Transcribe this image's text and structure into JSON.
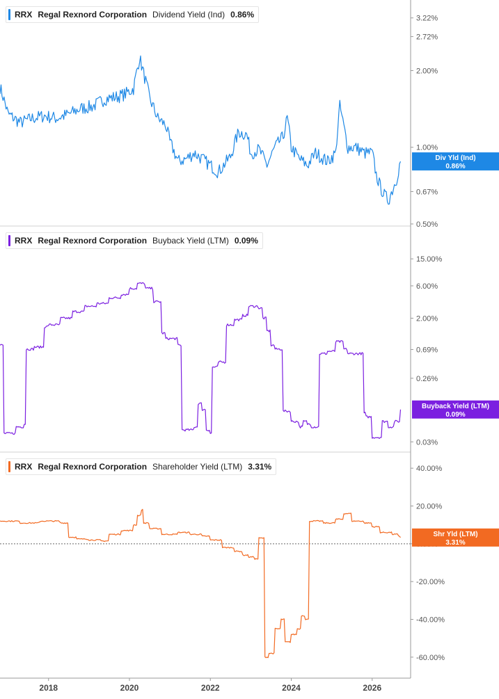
{
  "chart_data": [
    {
      "type": "line",
      "ticker": "RRX",
      "company": "Regal Rexnord Corporation",
      "metric": "Dividend Yield (Ind)",
      "last_value": "0.86%",
      "badge": {
        "label": "Div Yld (Ind)",
        "value": "0.86%"
      },
      "color": "#1e88e5",
      "scale": "log",
      "ylim": [
        0.5,
        3.6
      ],
      "yticks": [
        "0.50%",
        "0.67%",
        "1.00%",
        "2.00%",
        "2.72%",
        "3.22%"
      ],
      "ytick_values": [
        0.5,
        0.67,
        1.0,
        2.0,
        2.72,
        3.22
      ],
      "series": [
        {
          "x": [
            2016.8,
            2017.0,
            2017.3,
            2017.6,
            2017.9,
            2018.2,
            2018.5,
            2018.8,
            2019.1,
            2019.4,
            2019.7,
            2019.9,
            2020.1,
            2020.2,
            2020.25,
            2020.35,
            2020.5,
            2020.7,
            2020.9,
            2021.0,
            2021.2,
            2021.4,
            2021.6,
            2021.8,
            2022.0,
            2022.2,
            2022.5,
            2022.7,
            2022.9,
            2023.0,
            2023.2,
            2023.4,
            2023.6,
            2023.8,
            2023.9,
            2024.0,
            2024.2,
            2024.4,
            2024.6,
            2024.9,
            2025.1,
            2025.2,
            2025.3,
            2025.4,
            2025.6,
            2025.8,
            2026.0,
            2026.1,
            2026.2,
            2026.3,
            2026.4,
            2026.5,
            2026.6,
            2026.7
          ],
          "y": [
            1.72,
            1.35,
            1.25,
            1.3,
            1.33,
            1.3,
            1.35,
            1.42,
            1.45,
            1.55,
            1.58,
            1.62,
            1.7,
            2.05,
            2.25,
            1.95,
            1.55,
            1.3,
            1.22,
            1.05,
            0.88,
            0.9,
            0.95,
            0.9,
            0.85,
            0.8,
            0.92,
            1.15,
            1.12,
            0.95,
            0.98,
            0.85,
            1.0,
            1.1,
            1.3,
            1.0,
            0.9,
            0.85,
            0.95,
            0.88,
            0.95,
            1.45,
            1.2,
            1.0,
            1.0,
            0.95,
            0.95,
            0.78,
            0.7,
            0.65,
            0.62,
            0.68,
            0.75,
            0.88
          ]
        }
      ]
    },
    {
      "type": "line",
      "ticker": "RRX",
      "company": "Regal Rexnord Corporation",
      "metric": "Buyback Yield (LTM)",
      "last_value": "0.09%",
      "badge": {
        "label": "Buyback Yield (LTM)",
        "value": "0.09%"
      },
      "color": "#7b1fe0",
      "scale": "log",
      "ylim": [
        0.025,
        20
      ],
      "yticks": [
        "0.03%",
        "0.26%",
        "0.69%",
        "2.00%",
        "6.00%",
        "15.00%"
      ],
      "ytick_values": [
        0.03,
        0.26,
        0.69,
        2.0,
        6.0,
        15.0
      ],
      "series": [
        {
          "x": [
            2016.8,
            2016.85,
            2016.9,
            2017.1,
            2017.2,
            2017.4,
            2017.45,
            2017.65,
            2017.9,
            2018.0,
            2018.3,
            2018.6,
            2018.9,
            2019.2,
            2019.5,
            2019.8,
            2020.0,
            2020.2,
            2020.4,
            2020.6,
            2020.8,
            2020.9,
            2021.0,
            2021.2,
            2021.3,
            2021.6,
            2021.7,
            2021.8,
            2021.9,
            2022.0,
            2022.05,
            2022.2,
            2022.4,
            2022.6,
            2022.8,
            2022.95,
            2023.2,
            2023.3,
            2023.4,
            2023.5,
            2023.6,
            2023.8,
            2024.0,
            2024.2,
            2024.3,
            2024.4,
            2024.5,
            2024.7,
            2024.9,
            2025.1,
            2025.3,
            2025.4,
            2025.6,
            2025.7,
            2025.8,
            2025.85,
            2026.0,
            2026.15,
            2026.25,
            2026.4,
            2026.55,
            2026.7
          ],
          "y": [
            0.8,
            0.8,
            0.04,
            0.04,
            0.05,
            0.055,
            0.7,
            0.75,
            1.5,
            1.6,
            2.0,
            2.5,
            3.0,
            3.3,
            4.0,
            4.5,
            5.5,
            6.5,
            5.5,
            3.5,
            1.2,
            1.0,
            1.0,
            0.8,
            0.045,
            0.05,
            0.11,
            0.09,
            0.045,
            0.04,
            0.38,
            0.45,
            1.6,
            1.9,
            2.2,
            3.0,
            2.8,
            2.0,
            1.3,
            0.8,
            0.7,
            0.085,
            0.06,
            0.05,
            0.06,
            0.055,
            0.05,
            0.6,
            0.65,
            0.9,
            0.7,
            0.6,
            0.6,
            0.6,
            0.08,
            0.07,
            0.035,
            0.035,
            0.06,
            0.05,
            0.06,
            0.09
          ]
        }
      ]
    },
    {
      "type": "line",
      "ticker": "RRX",
      "company": "Regal Rexnord Corporation",
      "metric": "Shareholder Yield (LTM)",
      "last_value": "3.31%",
      "badge": {
        "label": "Shr Yld (LTM)",
        "value": "3.31%"
      },
      "color": "#f26a22",
      "scale": "linear",
      "ylim": [
        -70,
        43
      ],
      "yticks": [
        "-60.00%",
        "-40.00%",
        "-20.00%",
        "0.00%",
        "20.00%",
        "40.00%"
      ],
      "ytick_values": [
        -60,
        -40,
        -20,
        0,
        20,
        40
      ],
      "zero_line": true,
      "series": [
        {
          "x": [
            2016.8,
            2017.3,
            2017.8,
            2018.3,
            2018.5,
            2018.7,
            2019.0,
            2019.3,
            2019.5,
            2019.8,
            2020.1,
            2020.2,
            2020.3,
            2020.35,
            2020.5,
            2020.8,
            2021.2,
            2021.5,
            2021.8,
            2022.0,
            2022.3,
            2022.6,
            2022.8,
            2022.95,
            2023.1,
            2023.2,
            2023.3,
            2023.35,
            2023.45,
            2023.6,
            2023.75,
            2023.85,
            2024.0,
            2024.15,
            2024.25,
            2024.35,
            2024.45,
            2024.8,
            2025.1,
            2025.3,
            2025.5,
            2025.8,
            2026.0,
            2026.2,
            2026.5,
            2026.65,
            2026.7
          ],
          "y": [
            12,
            11,
            12,
            11,
            3.5,
            2.5,
            2,
            1.5,
            5,
            7,
            10,
            15,
            18,
            11,
            8,
            5,
            6,
            5,
            4,
            2,
            -2,
            -4,
            -6,
            -7,
            -8,
            3,
            3,
            -60,
            -58,
            -45,
            -40,
            -52,
            -48,
            -45,
            -38,
            -40,
            12,
            11,
            13,
            16,
            12,
            11,
            9,
            6,
            5,
            4,
            3.31
          ]
        }
      ]
    }
  ],
  "x_axis": {
    "ticks": [
      "2018",
      "2020",
      "2022",
      "2024",
      "2026"
    ],
    "tick_values": [
      2018,
      2020,
      2022,
      2024,
      2026
    ],
    "xlim": [
      2016.8,
      2026.95
    ]
  }
}
